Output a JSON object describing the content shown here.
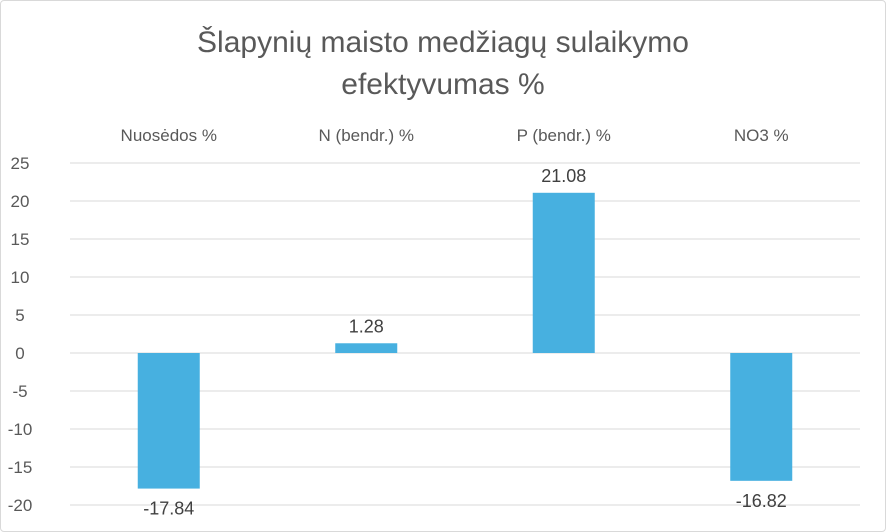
{
  "chart_data": {
    "type": "bar",
    "title_lines": [
      "Šlapynių maisto medžiagų sulaikymo",
      "efektyvumas %"
    ],
    "categories": [
      "Nuosėdos %",
      "N (bendr.) %",
      "P (bendr.) %",
      "NO3 %"
    ],
    "values": [
      -17.84,
      1.28,
      21.08,
      -16.82
    ],
    "data_labels": [
      "-17.84",
      "1.28",
      "21.08",
      "-16.82"
    ],
    "xlabel": "",
    "ylabel": "",
    "ylim": [
      -20,
      25
    ],
    "yticks": [
      25,
      20,
      15,
      10,
      5,
      0,
      -5,
      -10,
      -15,
      -20
    ],
    "category_labels_position": "top",
    "grid": true,
    "legend": "none",
    "bar_color": "#47B0E0",
    "grid_color": "#d9d9d9"
  }
}
